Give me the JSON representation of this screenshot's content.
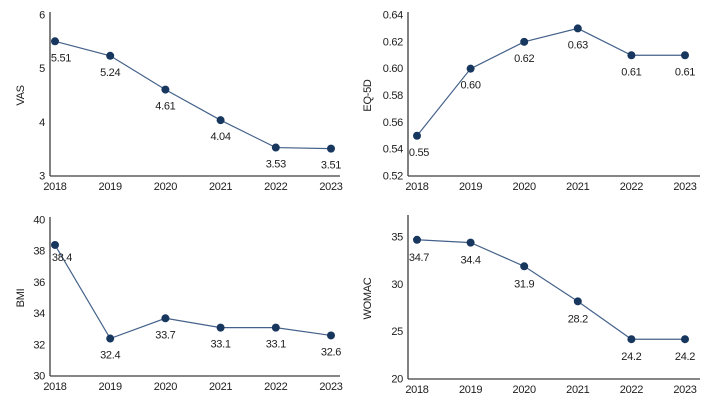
{
  "colors": {
    "background": "#ffffff",
    "marker": "#17375e",
    "line": "#44618a",
    "axis": "#3d3d3d",
    "text": "#1c1c1c"
  },
  "chart_data": [
    {
      "type": "line",
      "title": "",
      "ylabel": "VAS",
      "xlabel": "",
      "categories": [
        "2018",
        "2019",
        "2020",
        "2021",
        "2022",
        "2023"
      ],
      "values": [
        5.51,
        5.24,
        4.61,
        4.04,
        3.53,
        3.51
      ],
      "point_labels": [
        "5.51",
        "5.24",
        "4.61",
        "4.04",
        "3.53",
        "3.51"
      ],
      "yticks": [
        3,
        4,
        5,
        6
      ],
      "ytick_labels": [
        "3",
        "4",
        "5",
        "6"
      ],
      "ylim": [
        3,
        6
      ],
      "grid": false,
      "legend": "none"
    },
    {
      "type": "line",
      "title": "",
      "ylabel": "EQ-5D",
      "xlabel": "",
      "categories": [
        "2018",
        "2019",
        "2020",
        "2021",
        "2022",
        "2023"
      ],
      "values": [
        0.55,
        0.6,
        0.62,
        0.63,
        0.61,
        0.61
      ],
      "point_labels": [
        "0.55",
        "0.60",
        "0.62",
        "0.63",
        "0.61",
        "0.61"
      ],
      "yticks": [
        0.52,
        0.54,
        0.56,
        0.58,
        0.6,
        0.62,
        0.64
      ],
      "ytick_labels": [
        "0.52",
        "0.54",
        "0.56",
        "0.58",
        "0.60",
        "0.62",
        "0.64"
      ],
      "ylim": [
        0.52,
        0.64
      ],
      "grid": false,
      "legend": "none"
    },
    {
      "type": "line",
      "title": "",
      "ylabel": "BMI",
      "xlabel": "",
      "categories": [
        "2018",
        "2019",
        "2020",
        "2021",
        "2022",
        "2023"
      ],
      "values": [
        38.4,
        32.4,
        33.7,
        33.1,
        33.1,
        32.6
      ],
      "point_labels": [
        "38.4",
        "32.4",
        "33.7",
        "33.1",
        "33.1",
        "32.6"
      ],
      "yticks": [
        30,
        32,
        34,
        36,
        38,
        40
      ],
      "ytick_labels": [
        "30",
        "32",
        "34",
        "36",
        "38",
        "40"
      ],
      "ylim": [
        30,
        40
      ],
      "grid": false,
      "legend": "none"
    },
    {
      "type": "line",
      "title": "",
      "ylabel": "WOMAC",
      "xlabel": "",
      "categories": [
        "2018",
        "2019",
        "2020",
        "2021",
        "2022",
        "2023"
      ],
      "values": [
        34.7,
        34.4,
        31.9,
        28.2,
        24.2,
        24.2
      ],
      "point_labels": [
        "34.7",
        "34.4",
        "31.9",
        "28.2",
        "24.2",
        "24.2"
      ],
      "yticks": [
        20,
        25,
        30,
        35
      ],
      "ytick_labels": [
        "20",
        "25",
        "30",
        "35"
      ],
      "ylim": [
        20,
        37
      ],
      "grid": false,
      "legend": "none"
    }
  ]
}
